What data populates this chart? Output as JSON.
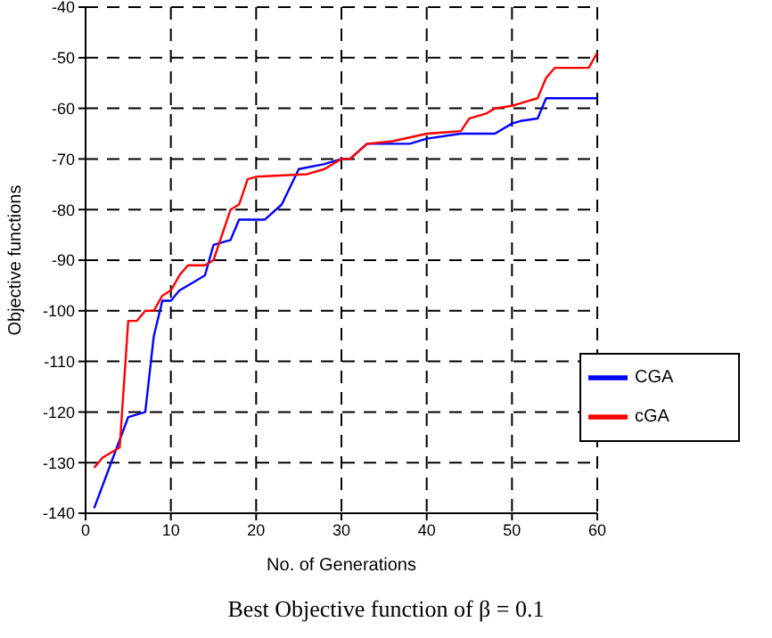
{
  "chart_data": {
    "type": "line",
    "title": "Best Objective function of β = 0.1",
    "xlabel": "No. of Generations",
    "ylabel": "Objective functions",
    "xlim": [
      0,
      60
    ],
    "xticks": [
      0,
      10,
      20,
      30,
      40,
      50,
      60
    ],
    "ylim": [
      -140,
      -40
    ],
    "yticks": [
      -140,
      -130,
      -120,
      -110,
      -100,
      -90,
      -80,
      -70,
      -60,
      -50,
      -40
    ],
    "grid": true,
    "legend": "bottom right",
    "marker": "none",
    "line_style": "solid",
    "series": [
      {
        "name": "CGA",
        "color": "#0000ff",
        "x": [
          1,
          5,
          7,
          8,
          9,
          10,
          11,
          13,
          14,
          15,
          17,
          18,
          21,
          23,
          25,
          28,
          30,
          31,
          33,
          38,
          40,
          44,
          48,
          50,
          51,
          53,
          54,
          60
        ],
        "values": [
          -139,
          -121,
          -120,
          -105,
          -98,
          -98,
          -96,
          -94,
          -93,
          -87,
          -86,
          -82,
          -82,
          -79,
          -72,
          -71,
          -70,
          -70,
          -67,
          -67,
          -66,
          -65,
          -65,
          -63,
          -62.5,
          -62,
          -58,
          -58
        ]
      },
      {
        "name": "cGA",
        "color": "#ff0000",
        "x": [
          1,
          2,
          4,
          5,
          6,
          7,
          8,
          9,
          10,
          11,
          12,
          14,
          15,
          17,
          18,
          19,
          20,
          26,
          28,
          30,
          31,
          33,
          36,
          40,
          44,
          45,
          47,
          48,
          50,
          51,
          53,
          54,
          55,
          59,
          60
        ],
        "values": [
          -131,
          -129,
          -127,
          -102,
          -102,
          -100,
          -100,
          -97,
          -96,
          -93,
          -91,
          -91,
          -90,
          -80,
          -79,
          -74,
          -73.5,
          -73,
          -72,
          -70,
          -70,
          -67,
          -66.5,
          -65,
          -64.5,
          -62,
          -61,
          -60,
          -59.5,
          -59,
          -58,
          -54,
          -52,
          -52,
          -49
        ]
      }
    ]
  }
}
